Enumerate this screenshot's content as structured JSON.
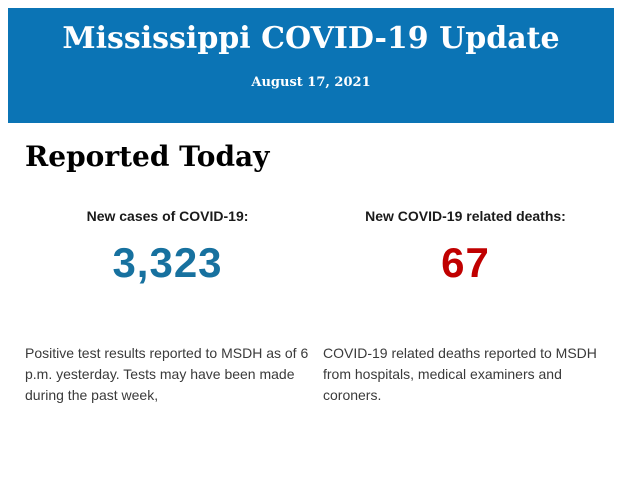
{
  "header": {
    "title": "Mississippi COVID-19 Update",
    "date": "August 17, 2021",
    "background_color": "#0b74b5",
    "text_color": "#ffffff"
  },
  "main": {
    "section_title": "Reported Today",
    "stats": [
      {
        "label": "New cases of COVID-19:",
        "value": "3,323",
        "value_color": "#17719f",
        "description": "Positive test results reported to MSDH as of 6 p.m. yesterday. Tests may have been made during the past week,"
      },
      {
        "label": "New COVID-19 related deaths:",
        "value": "67",
        "value_color": "#c00000",
        "description": "COVID-19 related deaths reported to MSDH from hospitals, medical examiners and coroners."
      }
    ]
  }
}
